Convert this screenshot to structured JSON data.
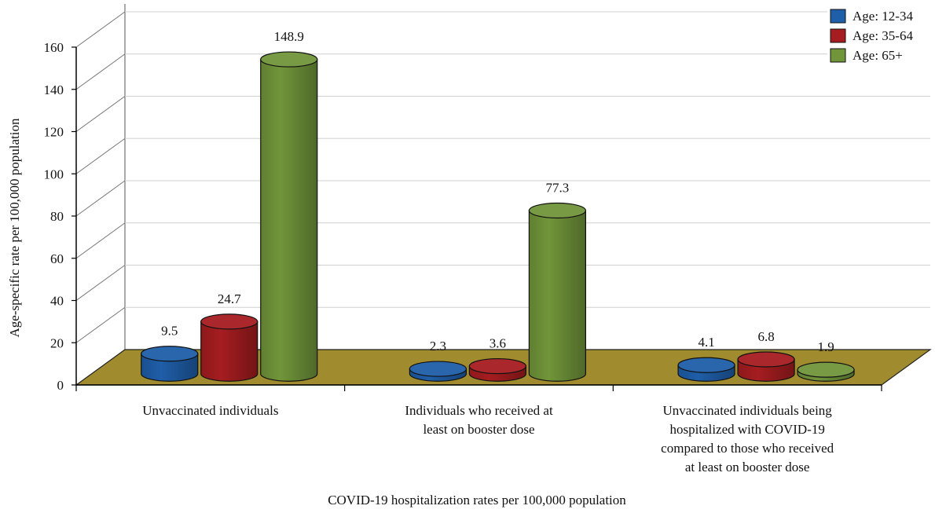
{
  "chart_data": {
    "type": "bar",
    "style": "3d-cylinder",
    "title": "",
    "categories": [
      [
        "Unvaccinated individuals"
      ],
      [
        "Individuals who received at",
        "least on booster dose"
      ],
      [
        "Unvaccinated individuals being",
        "hospitalized with COVID-19",
        "compared to those who received",
        "at least on booster dose"
      ]
    ],
    "series": [
      {
        "name": "Age: 12-34",
        "color": "#1f5ea8",
        "values": [
          9.5,
          2.3,
          4.1
        ]
      },
      {
        "name": "Age: 35-64",
        "color": "#a51d20",
        "values": [
          24.7,
          3.6,
          6.8
        ]
      },
      {
        "name": "Age: 65+",
        "color": "#71953a",
        "values": [
          148.9,
          77.3,
          1.9
        ]
      }
    ],
    "data_labels": [
      [
        "9.5",
        "2.3",
        "4.1"
      ],
      [
        "24.7",
        "3.6",
        "6.8"
      ],
      [
        "148.9",
        "77.3",
        "1.9"
      ]
    ],
    "xlabel": "COVID-19 hospitalization rates per 100,000 population",
    "ylabel": "Age-specific rate per 100,000 population",
    "ylim": [
      0,
      160
    ],
    "yticks": [
      0,
      20,
      40,
      60,
      80,
      100,
      120,
      140,
      160
    ],
    "grid": true,
    "legend_position": "top-right",
    "floor_color": "#a08c2e"
  }
}
